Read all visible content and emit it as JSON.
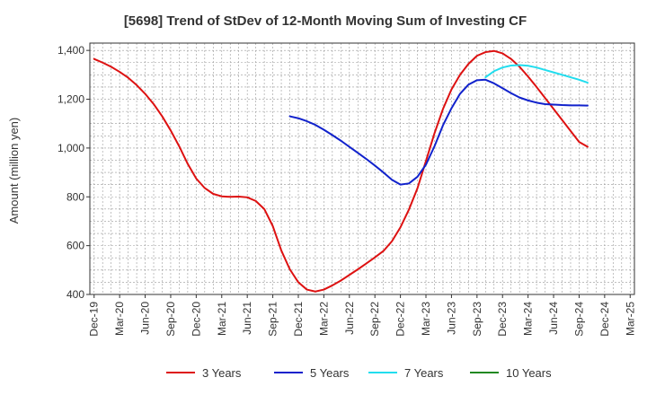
{
  "chart_data": {
    "type": "line",
    "title": "[5698]  Trend of StDev of 12-Month Moving Sum of Investing CF",
    "xlabel": "",
    "ylabel": "Amount (million yen)",
    "ylim": [
      400,
      1430
    ],
    "yticks": [
      400,
      600,
      800,
      1000,
      1200,
      1400
    ],
    "ytick_labels": [
      "400",
      "600",
      "800",
      "1,000",
      "1,200",
      "1,400"
    ],
    "xtick_labels": [
      "Dec-19",
      "Mar-20",
      "Jun-20",
      "Sep-20",
      "Dec-20",
      "Mar-21",
      "Jun-21",
      "Sep-21",
      "Dec-21",
      "Mar-22",
      "Jun-22",
      "Sep-22",
      "Dec-22",
      "Mar-23",
      "Jun-23",
      "Sep-23",
      "Dec-23",
      "Mar-24",
      "Jun-24",
      "Sep-24",
      "Dec-24",
      "Mar-25"
    ],
    "x_months": [
      "2019-12",
      "2020-01",
      "2020-02",
      "2020-03",
      "2020-04",
      "2020-05",
      "2020-06",
      "2020-07",
      "2020-08",
      "2020-09",
      "2020-10",
      "2020-11",
      "2020-12",
      "2021-01",
      "2021-02",
      "2021-03",
      "2021-04",
      "2021-05",
      "2021-06",
      "2021-07",
      "2021-08",
      "2021-09",
      "2021-10",
      "2021-11",
      "2021-12",
      "2022-01",
      "2022-02",
      "2022-03",
      "2022-04",
      "2022-05",
      "2022-06",
      "2022-07",
      "2022-08",
      "2022-09",
      "2022-10",
      "2022-11",
      "2022-12",
      "2023-01",
      "2023-02",
      "2023-03",
      "2023-04",
      "2023-05",
      "2023-06",
      "2023-07",
      "2023-08",
      "2023-09",
      "2023-10",
      "2023-11",
      "2023-12",
      "2024-01",
      "2024-02",
      "2024-03",
      "2024-04",
      "2024-05",
      "2024-06",
      "2024-07",
      "2024-08",
      "2024-09",
      "2024-10",
      "2024-11",
      "2024-12",
      "2025-01",
      "2025-02",
      "2025-03"
    ],
    "grid": true,
    "legend_position": "bottom",
    "series": [
      {
        "name": "3 Years",
        "color": "#dd1111",
        "values": [
          1365,
          1350,
          1333,
          1312,
          1288,
          1258,
          1222,
          1180,
          1130,
          1072,
          1007,
          935,
          875,
          836,
          812,
          802,
          800,
          801,
          798,
          783,
          750,
          680,
          580,
          503,
          450,
          420,
          412,
          420,
          437,
          457,
          480,
          503,
          527,
          552,
          578,
          618,
          675,
          748,
          835,
          947,
          1060,
          1160,
          1240,
          1300,
          1345,
          1378,
          1393,
          1398,
          1388,
          1365,
          1333,
          1293,
          1250,
          1205,
          1160,
          1115,
          1070,
          1025,
          1005,
          null,
          null,
          null,
          null,
          null
        ]
      },
      {
        "name": "5 Years",
        "color": "#1122cc",
        "values": [
          null,
          null,
          null,
          null,
          null,
          null,
          null,
          null,
          null,
          null,
          null,
          null,
          null,
          null,
          null,
          null,
          null,
          null,
          null,
          null,
          null,
          null,
          null,
          1130,
          1122,
          1110,
          1095,
          1075,
          1053,
          1030,
          1005,
          980,
          955,
          928,
          900,
          870,
          850,
          855,
          882,
          932,
          1007,
          1093,
          1163,
          1222,
          1260,
          1278,
          1280,
          1265,
          1245,
          1225,
          1207,
          1195,
          1186,
          1180,
          1178,
          1176,
          1175,
          1175,
          1174,
          null,
          null,
          null,
          null,
          null
        ]
      },
      {
        "name": "7 Years",
        "color": "#22ddee",
        "values": [
          null,
          null,
          null,
          null,
          null,
          null,
          null,
          null,
          null,
          null,
          null,
          null,
          null,
          null,
          null,
          null,
          null,
          null,
          null,
          null,
          null,
          null,
          null,
          null,
          null,
          null,
          null,
          null,
          null,
          null,
          null,
          null,
          null,
          null,
          null,
          null,
          null,
          null,
          null,
          null,
          null,
          null,
          null,
          null,
          null,
          null,
          1290,
          1315,
          1330,
          1338,
          1340,
          1337,
          1330,
          1320,
          1310,
          1300,
          1290,
          1280,
          1268,
          null,
          null,
          null,
          null,
          null
        ]
      },
      {
        "name": "10 Years",
        "color": "#228822",
        "values": []
      }
    ]
  }
}
